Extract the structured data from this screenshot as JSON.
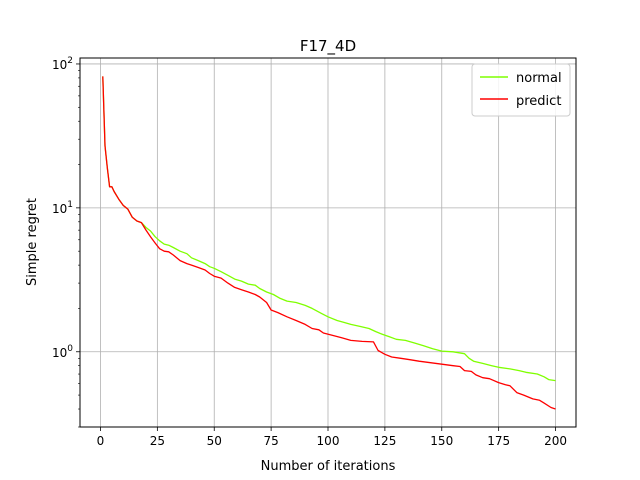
{
  "chart_data": {
    "type": "line",
    "title": "F17_4D",
    "xlabel": "Number of iterations",
    "ylabel": "Simple regret",
    "xlim": [
      -9,
      209
    ],
    "ylim": [
      0.3,
      110
    ],
    "yscale": "log",
    "grid": true,
    "legend_position": "top-right",
    "x_ticks": [
      0,
      25,
      50,
      75,
      100,
      125,
      150,
      175,
      200
    ],
    "y_ticks": [
      {
        "value": 1,
        "base": "10",
        "exp": "0"
      },
      {
        "value": 10,
        "base": "10",
        "exp": "1"
      },
      {
        "value": 100,
        "base": "10",
        "exp": "2"
      }
    ],
    "series": [
      {
        "name": "normal",
        "color": "#7fff00",
        "points": [
          [
            1,
            82
          ],
          [
            2,
            27
          ],
          [
            3,
            19
          ],
          [
            4,
            14
          ],
          [
            5,
            14
          ],
          [
            6,
            13
          ],
          [
            8,
            11.5
          ],
          [
            10,
            10.4
          ],
          [
            12,
            9.8
          ],
          [
            14,
            8.6
          ],
          [
            16,
            8.1
          ],
          [
            18,
            7.9
          ],
          [
            20,
            7.3
          ],
          [
            22,
            6.9
          ],
          [
            24,
            6.3
          ],
          [
            26,
            5.9
          ],
          [
            28,
            5.6
          ],
          [
            30,
            5.5
          ],
          [
            32,
            5.3
          ],
          [
            35,
            5.0
          ],
          [
            38,
            4.8
          ],
          [
            40,
            4.5
          ],
          [
            43,
            4.3
          ],
          [
            46,
            4.1
          ],
          [
            48,
            3.9
          ],
          [
            50,
            3.8
          ],
          [
            53,
            3.6
          ],
          [
            56,
            3.4
          ],
          [
            59,
            3.2
          ],
          [
            62,
            3.1
          ],
          [
            65,
            2.95
          ],
          [
            68,
            2.9
          ],
          [
            70,
            2.75
          ],
          [
            73,
            2.6
          ],
          [
            76,
            2.5
          ],
          [
            79,
            2.35
          ],
          [
            82,
            2.25
          ],
          [
            86,
            2.2
          ],
          [
            90,
            2.1
          ],
          [
            93,
            2.0
          ],
          [
            97,
            1.85
          ],
          [
            100,
            1.75
          ],
          [
            104,
            1.65
          ],
          [
            107,
            1.6
          ],
          [
            110,
            1.55
          ],
          [
            114,
            1.5
          ],
          [
            118,
            1.45
          ],
          [
            121,
            1.38
          ],
          [
            124,
            1.32
          ],
          [
            127,
            1.27
          ],
          [
            130,
            1.22
          ],
          [
            134,
            1.2
          ],
          [
            138,
            1.15
          ],
          [
            142,
            1.1
          ],
          [
            146,
            1.05
          ],
          [
            150,
            1.01
          ],
          [
            155,
            1.0
          ],
          [
            160,
            0.97
          ],
          [
            162,
            0.9
          ],
          [
            164,
            0.86
          ],
          [
            168,
            0.83
          ],
          [
            172,
            0.8
          ],
          [
            175,
            0.78
          ],
          [
            180,
            0.76
          ],
          [
            184,
            0.74
          ],
          [
            187,
            0.72
          ],
          [
            192,
            0.7
          ],
          [
            195,
            0.67
          ],
          [
            197,
            0.64
          ],
          [
            200,
            0.63
          ]
        ]
      },
      {
        "name": "predict",
        "color": "#ff0000",
        "points": [
          [
            1,
            82
          ],
          [
            2,
            27
          ],
          [
            3,
            19
          ],
          [
            4,
            14
          ],
          [
            5,
            14
          ],
          [
            6,
            13
          ],
          [
            8,
            11.5
          ],
          [
            10,
            10.4
          ],
          [
            12,
            9.8
          ],
          [
            14,
            8.6
          ],
          [
            16,
            8.1
          ],
          [
            18,
            7.9
          ],
          [
            20,
            7.0
          ],
          [
            22,
            6.3
          ],
          [
            24,
            5.7
          ],
          [
            26,
            5.2
          ],
          [
            28,
            5.0
          ],
          [
            30,
            4.95
          ],
          [
            32,
            4.7
          ],
          [
            35,
            4.3
          ],
          [
            38,
            4.1
          ],
          [
            40,
            4.0
          ],
          [
            43,
            3.85
          ],
          [
            46,
            3.7
          ],
          [
            48,
            3.5
          ],
          [
            50,
            3.35
          ],
          [
            53,
            3.25
          ],
          [
            56,
            3.0
          ],
          [
            59,
            2.8
          ],
          [
            62,
            2.7
          ],
          [
            65,
            2.6
          ],
          [
            68,
            2.5
          ],
          [
            70,
            2.4
          ],
          [
            73,
            2.2
          ],
          [
            75,
            1.95
          ],
          [
            78,
            1.87
          ],
          [
            82,
            1.75
          ],
          [
            86,
            1.65
          ],
          [
            90,
            1.55
          ],
          [
            93,
            1.45
          ],
          [
            96,
            1.42
          ],
          [
            98,
            1.35
          ],
          [
            102,
            1.3
          ],
          [
            106,
            1.25
          ],
          [
            110,
            1.2
          ],
          [
            115,
            1.18
          ],
          [
            120,
            1.17
          ],
          [
            122,
            1.02
          ],
          [
            125,
            0.96
          ],
          [
            128,
            0.92
          ],
          [
            132,
            0.9
          ],
          [
            136,
            0.88
          ],
          [
            140,
            0.86
          ],
          [
            145,
            0.84
          ],
          [
            150,
            0.82
          ],
          [
            155,
            0.8
          ],
          [
            158,
            0.79
          ],
          [
            160,
            0.74
          ],
          [
            163,
            0.73
          ],
          [
            165,
            0.69
          ],
          [
            168,
            0.66
          ],
          [
            171,
            0.65
          ],
          [
            175,
            0.61
          ],
          [
            178,
            0.59
          ],
          [
            180,
            0.58
          ],
          [
            183,
            0.52
          ],
          [
            186,
            0.5
          ],
          [
            190,
            0.47
          ],
          [
            193,
            0.46
          ],
          [
            195,
            0.44
          ],
          [
            198,
            0.41
          ],
          [
            200,
            0.4
          ]
        ]
      }
    ]
  }
}
